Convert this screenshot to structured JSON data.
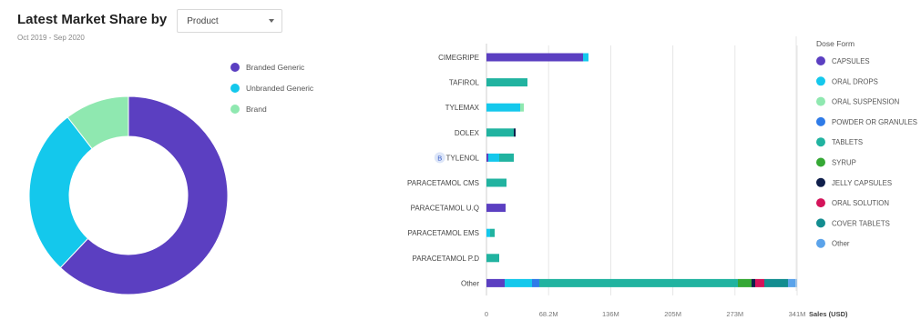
{
  "header": {
    "title": "Latest Market Share by",
    "dropdown_value": "Product",
    "subtitle": "Oct 2019 - Sep 2020"
  },
  "colors": {
    "CAPSULES": "#5b3fc1",
    "ORAL DROPS": "#14c8ec",
    "ORAL SUSPENSION": "#8fe8b0",
    "POWDER OR GRANULES": "#2f7be8",
    "TABLETS": "#21b3a0",
    "SYRUP": "#35a835",
    "JELLY CAPSULES": "#0f1f4b",
    "ORAL SOLUTION": "#d4145a",
    "COVER TABLETS": "#138d90",
    "Other": "#5ba3ea"
  },
  "chart_data": [
    {
      "type": "pie",
      "donut": true,
      "legend": "right",
      "labels": [
        "Branded Generic",
        "Unbranded Generic",
        "Brand"
      ],
      "values": [
        62,
        27.5,
        10.5
      ],
      "colors": [
        "#5b3fc1",
        "#14c8ec",
        "#8fe8b0"
      ]
    },
    {
      "type": "bar",
      "orientation": "horizontal",
      "stacked": true,
      "categories": [
        "CIMEGRIPE",
        "TAFIROL",
        "TYLEMAX",
        "DOLEX",
        "TYLENOL",
        "PARACETAMOL CMS",
        "PARACETAMOL U.Q",
        "PARACETAMOL EMS",
        "PARACETAMOL P.D",
        "Other"
      ],
      "category_badges": {
        "TYLENOL": "B"
      },
      "legend_title": "Dose Form",
      "legend": "right",
      "xlabel": "Sales (USD)",
      "xticks": [
        "0",
        "68.2M",
        "136M",
        "205M",
        "273M",
        "341M"
      ],
      "xlim": [
        0,
        341
      ],
      "grid": true,
      "series": [
        {
          "name": "CAPSULES",
          "values": [
            106,
            0,
            0,
            0,
            2,
            0,
            21,
            0,
            0,
            20
          ]
        },
        {
          "name": "ORAL DROPS",
          "values": [
            6,
            0,
            37,
            0,
            12,
            0,
            0,
            4,
            0,
            30
          ]
        },
        {
          "name": "ORAL SUSPENSION",
          "values": [
            0,
            0,
            4,
            0,
            0,
            0,
            0,
            0,
            0,
            0
          ]
        },
        {
          "name": "POWDER OR GRANULES",
          "values": [
            0,
            0,
            0,
            0,
            0,
            0,
            0,
            0,
            0,
            8
          ]
        },
        {
          "name": "TABLETS",
          "values": [
            0,
            45,
            0,
            30,
            16,
            22,
            0,
            5,
            14,
            218
          ]
        },
        {
          "name": "SYRUP",
          "values": [
            0,
            0,
            0,
            0,
            0,
            0,
            0,
            0,
            0,
            15
          ]
        },
        {
          "name": "JELLY CAPSULES",
          "values": [
            0,
            0,
            0,
            2,
            0,
            0,
            0,
            0,
            0,
            4
          ]
        },
        {
          "name": "ORAL SOLUTION",
          "values": [
            0,
            0,
            0,
            0,
            0,
            0,
            0,
            0,
            0,
            10
          ]
        },
        {
          "name": "COVER TABLETS",
          "values": [
            0,
            0,
            0,
            0,
            0,
            0,
            0,
            0,
            0,
            26
          ]
        },
        {
          "name": "Other",
          "values": [
            0,
            0,
            0,
            0,
            0,
            0,
            0,
            0,
            0,
            10
          ]
        }
      ]
    }
  ]
}
